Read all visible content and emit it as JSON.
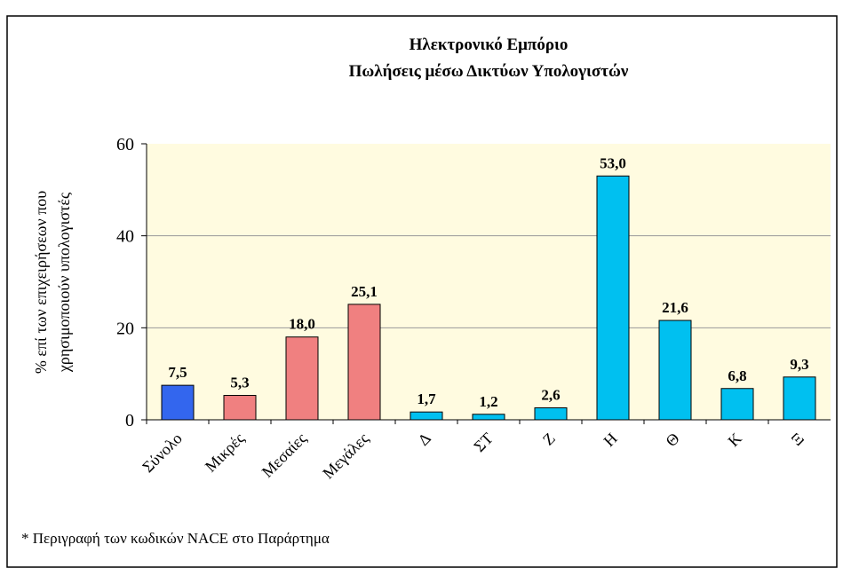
{
  "chart_data": {
    "type": "bar",
    "title": "Ηλεκτρονικό Εμπόριο",
    "subtitle": "Πωλήσεις μέσω Δικτύων Υπολογιστών",
    "ylabel": [
      "% επί των επιχειρήσεων που",
      "χρησιμοποιούν υπολογιστές"
    ],
    "categories": [
      "Σύνολο",
      "Μικρές",
      "Μεσαίες",
      "Μεγάλες",
      "Δ",
      "ΣΤ",
      "Ζ",
      "Η",
      "Θ",
      "Κ",
      "Ξ"
    ],
    "values": [
      7.5,
      5.3,
      18.0,
      25.1,
      1.7,
      1.2,
      2.6,
      53.0,
      21.6,
      6.8,
      9.3
    ],
    "value_labels": [
      "7,5",
      "5,3",
      "18,0",
      "25,1",
      "1,7",
      "1,2",
      "2,6",
      "53,0",
      "21,6",
      "6,8",
      "9,3"
    ],
    "colors": [
      "#3366ee",
      "#f08080",
      "#f08080",
      "#f08080",
      "#00c0f0",
      "#00c0f0",
      "#00c0f0",
      "#00c0f0",
      "#00c0f0",
      "#00c0f0",
      "#00c0f0"
    ],
    "ylim": [
      0,
      60
    ],
    "yticks": [
      0,
      20,
      40,
      60
    ],
    "grid": true,
    "footnote": "* Περιγραφή των κωδικών NACE στο Παράρτημα"
  }
}
